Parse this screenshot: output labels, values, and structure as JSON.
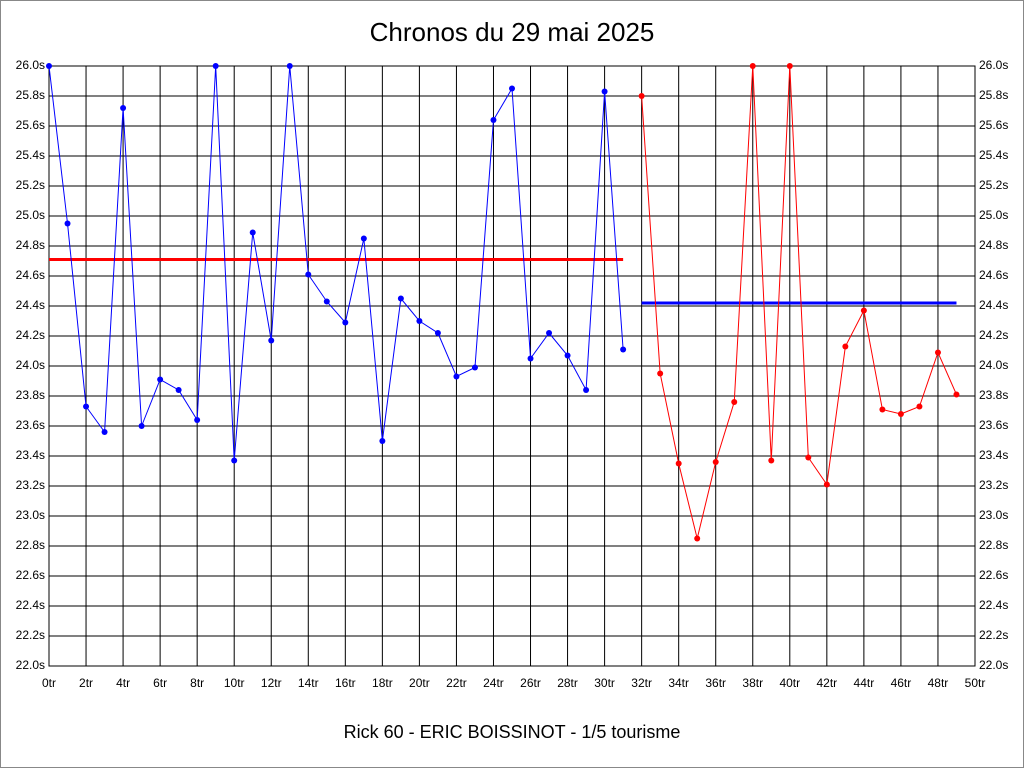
{
  "chart_data": {
    "type": "line",
    "title": "Chronos du 29 mai 2025",
    "xlabel": "Rick 60 - ERIC BOISSINOT - 1/5 tourisme",
    "series": [
      {
        "color": "#0000ff",
        "x": [
          0,
          1,
          2,
          3,
          4,
          5,
          6,
          7,
          8,
          9,
          10,
          11,
          12,
          13,
          14,
          15,
          16,
          17,
          18,
          19,
          20,
          21,
          22,
          23,
          24,
          25,
          26,
          27,
          28,
          29,
          30,
          31
        ],
        "values": [
          26.0,
          24.95,
          23.73,
          23.56,
          25.72,
          23.6,
          23.91,
          23.84,
          23.64,
          26.0,
          23.37,
          24.89,
          24.17,
          26.0,
          24.61,
          24.43,
          24.29,
          24.85,
          23.5,
          24.45,
          24.3,
          24.22,
          23.93,
          23.99,
          25.64,
          25.85,
          24.05,
          24.22,
          24.07,
          23.84,
          25.83,
          24.11
        ]
      },
      {
        "color": "#ff0000",
        "x": [
          32,
          33,
          34,
          35,
          36,
          37,
          38,
          39,
          40,
          41,
          42,
          43,
          44,
          45,
          46,
          47,
          48,
          49
        ],
        "values": [
          25.8,
          23.95,
          23.35,
          22.85,
          23.36,
          23.76,
          26.0,
          23.37,
          26.0,
          23.39,
          23.21,
          24.13,
          24.37,
          23.71,
          23.68,
          23.73,
          24.09,
          23.81
        ]
      }
    ],
    "reference_lines": [
      {
        "value": 24.71,
        "color": "#ff0000",
        "x": [
          0,
          31
        ]
      },
      {
        "value": 24.42,
        "color": "#0000ff",
        "x": [
          32,
          49
        ]
      }
    ],
    "xlim": [
      0,
      50
    ],
    "xticks": [
      {
        "value": 0,
        "label": "0tr"
      },
      {
        "value": 2,
        "label": "2tr"
      },
      {
        "value": 4,
        "label": "4tr"
      },
      {
        "value": 6,
        "label": "6tr"
      },
      {
        "value": 8,
        "label": "8tr"
      },
      {
        "value": 10,
        "label": "10tr"
      },
      {
        "value": 12,
        "label": "12tr"
      },
      {
        "value": 14,
        "label": "14tr"
      },
      {
        "value": 16,
        "label": "16tr"
      },
      {
        "value": 18,
        "label": "18tr"
      },
      {
        "value": 20,
        "label": "20tr"
      },
      {
        "value": 22,
        "label": "22tr"
      },
      {
        "value": 24,
        "label": "24tr"
      },
      {
        "value": 26,
        "label": "26tr"
      },
      {
        "value": 28,
        "label": "28tr"
      },
      {
        "value": 30,
        "label": "30tr"
      },
      {
        "value": 32,
        "label": "32tr"
      },
      {
        "value": 34,
        "label": "34tr"
      },
      {
        "value": 36,
        "label": "36tr"
      },
      {
        "value": 38,
        "label": "38tr"
      },
      {
        "value": 40,
        "label": "40tr"
      },
      {
        "value": 42,
        "label": "42tr"
      },
      {
        "value": 44,
        "label": "44tr"
      },
      {
        "value": 46,
        "label": "46tr"
      },
      {
        "value": 48,
        "label": "48tr"
      },
      {
        "value": 50,
        "label": "50tr"
      }
    ],
    "ylim": [
      22.0,
      26.0
    ],
    "yticks": [
      {
        "value": 22.0,
        "label": "22.0s"
      },
      {
        "value": 22.2,
        "label": "22.2s"
      },
      {
        "value": 22.4,
        "label": "22.4s"
      },
      {
        "value": 22.6,
        "label": "22.6s"
      },
      {
        "value": 22.8,
        "label": "22.8s"
      },
      {
        "value": 23.0,
        "label": "23.0s"
      },
      {
        "value": 23.2,
        "label": "23.2s"
      },
      {
        "value": 23.4,
        "label": "23.4s"
      },
      {
        "value": 23.6,
        "label": "23.6s"
      },
      {
        "value": 23.8,
        "label": "23.8s"
      },
      {
        "value": 24.0,
        "label": "24.0s"
      },
      {
        "value": 24.2,
        "label": "24.2s"
      },
      {
        "value": 24.4,
        "label": "24.4s"
      },
      {
        "value": 24.6,
        "label": "24.6s"
      },
      {
        "value": 24.8,
        "label": "24.8s"
      },
      {
        "value": 25.0,
        "label": "25.0s"
      },
      {
        "value": 25.2,
        "label": "25.2s"
      },
      {
        "value": 25.4,
        "label": "25.4s"
      },
      {
        "value": 25.6,
        "label": "25.6s"
      },
      {
        "value": 25.8,
        "label": "25.8s"
      },
      {
        "value": 26.0,
        "label": "26.0s"
      }
    ],
    "grid": true
  }
}
